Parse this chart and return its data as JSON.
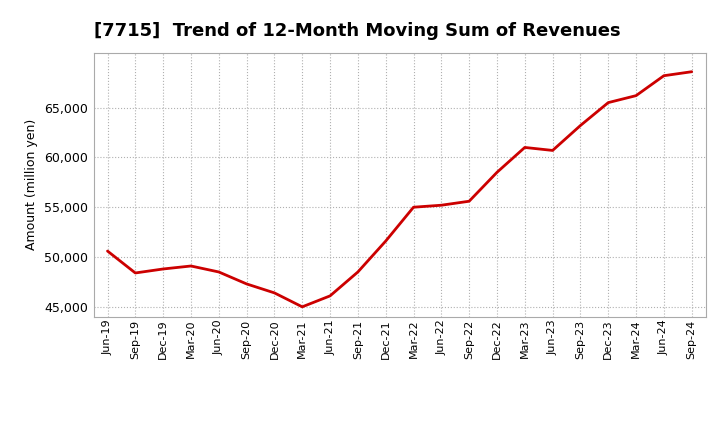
{
  "title": "[7715]  Trend of 12-Month Moving Sum of Revenues",
  "ylabel": "Amount (million yen)",
  "line_color": "#cc0000",
  "background_color": "#ffffff",
  "plot_background": "#ffffff",
  "grid_color": "#b0b0b0",
  "ylim": [
    44000,
    70500
  ],
  "yticks": [
    45000,
    50000,
    55000,
    60000,
    65000
  ],
  "x_labels": [
    "Jun-19",
    "Sep-19",
    "Dec-19",
    "Mar-20",
    "Jun-20",
    "Sep-20",
    "Dec-20",
    "Mar-21",
    "Jun-21",
    "Sep-21",
    "Dec-21",
    "Mar-22",
    "Jun-22",
    "Sep-22",
    "Dec-22",
    "Mar-23",
    "Jun-23",
    "Sep-23",
    "Dec-23",
    "Mar-24",
    "Jun-24",
    "Sep-24"
  ],
  "values": [
    50600,
    48400,
    48800,
    49100,
    48500,
    47300,
    46400,
    45000,
    46100,
    48500,
    51600,
    55000,
    55200,
    55600,
    58500,
    61000,
    60700,
    63200,
    65500,
    66200,
    68200,
    68600
  ],
  "title_fontsize": 13,
  "ylabel_fontsize": 9,
  "xtick_fontsize": 8,
  "ytick_fontsize": 9
}
